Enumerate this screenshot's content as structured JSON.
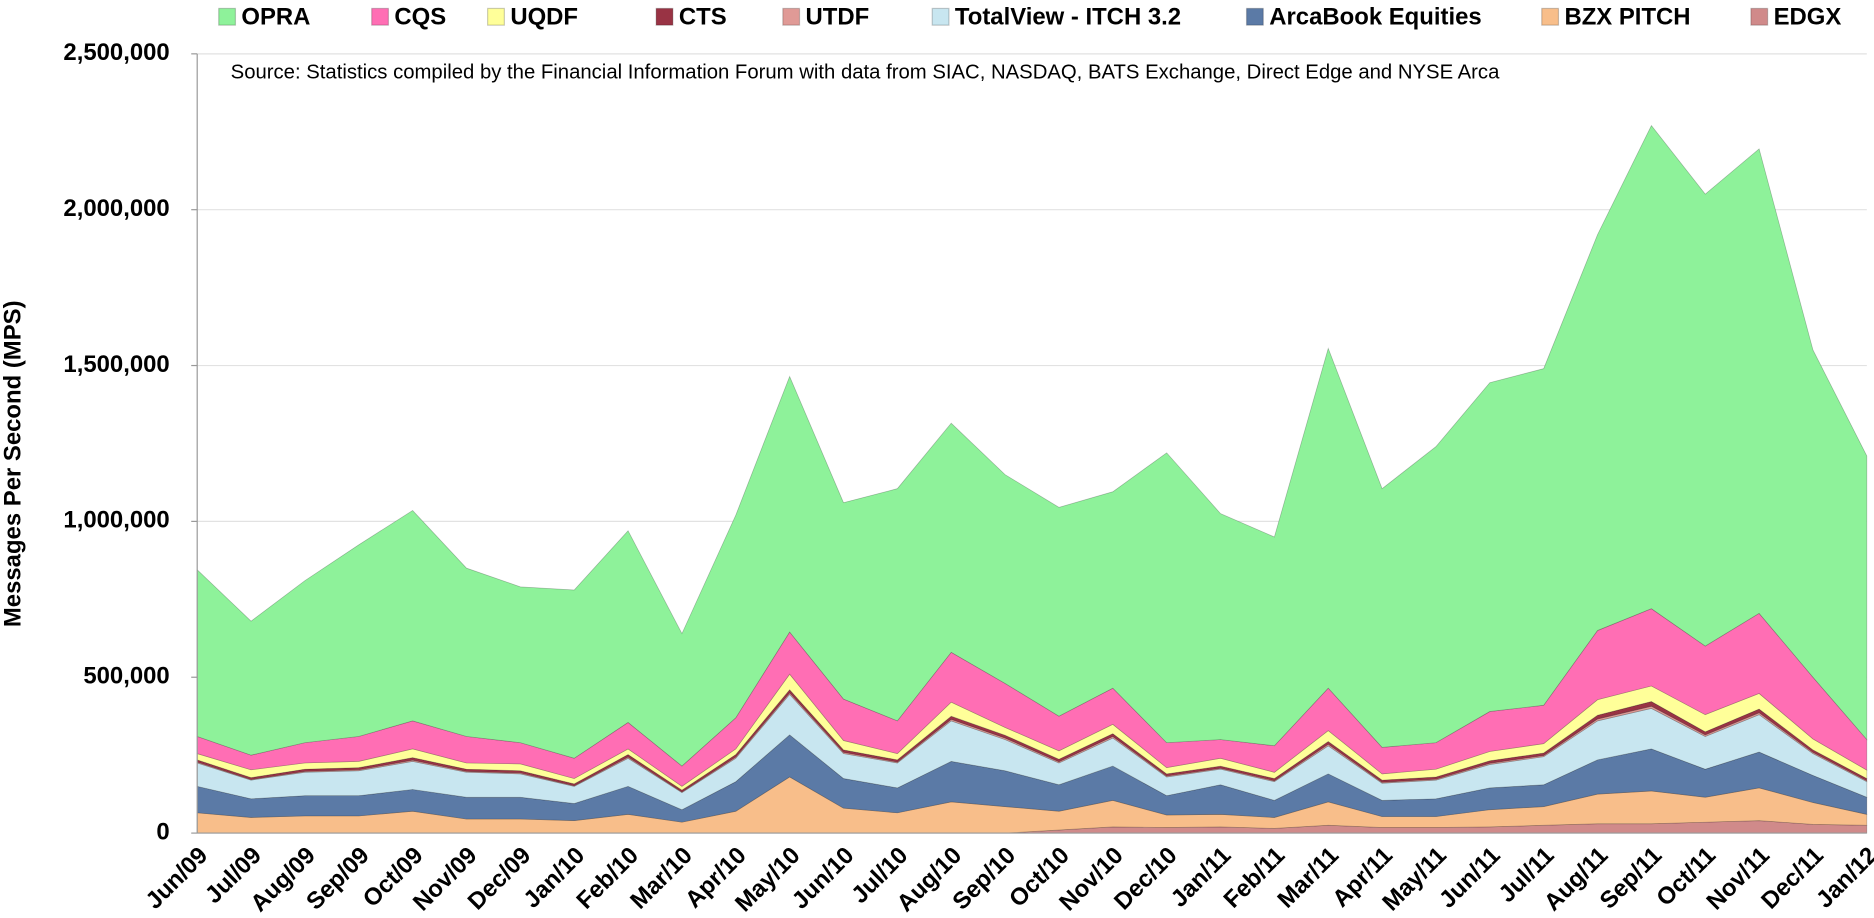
{
  "chart_data": {
    "type": "stacked-area",
    "annotation": "Source: Statistics compiled by the Financial Information Forum with data from SIAC, NASDAQ, BATS Exchange, Direct Edge and NYSE Arca",
    "y_label": "Messages Per Second (MPS)",
    "categories": [
      "Jun/09",
      "Jul/09",
      "Aug/09",
      "Sep/09",
      "Oct/09",
      "Nov/09",
      "Dec/09",
      "Jan/10",
      "Feb/10",
      "Mar/10",
      "Apr/10",
      "May/10",
      "Jun/10",
      "Jul/10",
      "Aug/10",
      "Sep/10",
      "Oct/10",
      "Nov/10",
      "Dec/10",
      "Jan/11",
      "Feb/11",
      "Mar/11",
      "Apr/11",
      "May/11",
      "Jun/11",
      "Jul/11",
      "Aug/11",
      "Sep/11",
      "Oct/11",
      "Nov/11",
      "Dec/11",
      "Jan/12"
    ],
    "ylim": [
      0,
      2500000
    ],
    "yticks": [
      0,
      {
        "value": 500000,
        "label": "500,000"
      },
      {
        "value": 1000000,
        "label": "1,000,000"
      },
      {
        "value": 1500000,
        "label": "1,500,000"
      },
      {
        "value": 2000000,
        "label": "2,000,000"
      },
      {
        "value": 2500000,
        "label": "2,500,000"
      }
    ],
    "grid": true,
    "legend": "top",
    "series": [
      {
        "name": "OPRA",
        "color": "#8ef29a",
        "values": [
          535000,
          430000,
          520000,
          615000,
          675000,
          540000,
          500000,
          540000,
          615000,
          425000,
          650000,
          820000,
          630000,
          745000,
          735000,
          670000,
          670000,
          630000,
          930000,
          725000,
          670000,
          1090000,
          830000,
          950000,
          1055000,
          1080000,
          1270000,
          1550000,
          1450000,
          1490000,
          1050000,
          910000
        ]
      },
      {
        "name": "CQS",
        "color": "#ff6eb4",
        "values": [
          55000,
          47000,
          65000,
          80000,
          90000,
          85000,
          68000,
          65000,
          85000,
          65000,
          100000,
          135000,
          133000,
          105000,
          160000,
          141000,
          111000,
          116000,
          80000,
          60000,
          85000,
          136000,
          85000,
          85000,
          128000,
          123000,
          222000,
          248000,
          220000,
          257000,
          198000,
          98000
        ]
      },
      {
        "name": "UQDF",
        "color": "#ffff99",
        "values": [
          20000,
          25000,
          20000,
          20000,
          28000,
          20000,
          22000,
          17000,
          18000,
          12000,
          18000,
          50000,
          30000,
          20000,
          45000,
          25000,
          27000,
          30000,
          20000,
          25000,
          20000,
          35000,
          20000,
          25000,
          30000,
          30000,
          50000,
          50000,
          55000,
          50000,
          35000,
          27000
        ]
      },
      {
        "name": "CTS",
        "color": "#993344",
        "values": [
          7000,
          6000,
          7000,
          7000,
          8000,
          7000,
          7000,
          6000,
          8000,
          6000,
          8000,
          10000,
          8000,
          7000,
          10000,
          9000,
          8000,
          9000,
          7000,
          7000,
          7000,
          9000,
          7000,
          7000,
          8000,
          8000,
          12000,
          15000,
          10000,
          12000,
          8000,
          7000
        ]
      },
      {
        "name": "UTDF",
        "color": "#e09a96",
        "values": [
          3000,
          2000,
          3000,
          3000,
          4000,
          3000,
          3000,
          2000,
          4000,
          2000,
          4000,
          5000,
          4000,
          3000,
          5000,
          5000,
          4000,
          5000,
          3000,
          3000,
          3000,
          5000,
          3000,
          3000,
          4000,
          4000,
          6000,
          7000,
          5000,
          6000,
          4000,
          3000
        ]
      },
      {
        "name": "TotalView - ITCH 3.2",
        "color": "#c8e6f0",
        "values": [
          75000,
          60000,
          75000,
          80000,
          90000,
          80000,
          75000,
          55000,
          90000,
          55000,
          75000,
          130000,
          80000,
          80000,
          130000,
          100000,
          70000,
          90000,
          60000,
          50000,
          60000,
          90000,
          55000,
          60000,
          75000,
          90000,
          125000,
          130000,
          105000,
          120000,
          70000,
          50000
        ]
      },
      {
        "name": "ArcaBook Equities",
        "color": "#5b7aa6",
        "values": [
          85000,
          60000,
          65000,
          65000,
          70000,
          70000,
          70000,
          55000,
          90000,
          40000,
          95000,
          135000,
          95000,
          80000,
          130000,
          115000,
          85000,
          110000,
          62000,
          95000,
          55000,
          90000,
          52000,
          57000,
          70000,
          70000,
          110000,
          135000,
          90000,
          115000,
          87000,
          55000
        ]
      },
      {
        "name": "BZX PITCH",
        "color": "#f8be8a",
        "values": [
          65000,
          50000,
          55000,
          55000,
          70000,
          45000,
          45000,
          40000,
          60000,
          35000,
          70000,
          180000,
          80000,
          65000,
          100000,
          85000,
          60000,
          85000,
          40000,
          40000,
          35000,
          75000,
          35000,
          35000,
          55000,
          60000,
          95000,
          105000,
          80000,
          105000,
          70000,
          35000
        ]
      },
      {
        "name": "EDGX",
        "color": "#d08a8a",
        "values": [
          0,
          0,
          0,
          0,
          0,
          0,
          0,
          0,
          0,
          0,
          0,
          0,
          0,
          0,
          0,
          0,
          10000,
          20000,
          18000,
          20000,
          15000,
          25000,
          18000,
          18000,
          20000,
          25000,
          30000,
          30000,
          35000,
          40000,
          28000,
          25000
        ]
      }
    ]
  }
}
